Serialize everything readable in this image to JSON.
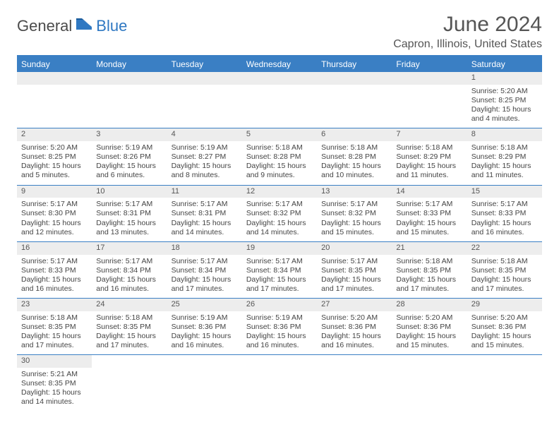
{
  "logo": {
    "general": "General",
    "blue": "Blue"
  },
  "title": "June 2024",
  "location": "Capron, Illinois, United States",
  "colors": {
    "header_bar": "#3a7fc4",
    "daynum_bg": "#ededed",
    "text": "#444444",
    "title_text": "#555555",
    "logo_gray": "#4b4b4b",
    "logo_blue": "#2f78c2",
    "background": "#ffffff"
  },
  "weekdays": [
    "Sunday",
    "Monday",
    "Tuesday",
    "Wednesday",
    "Thursday",
    "Friday",
    "Saturday"
  ],
  "weeks": [
    [
      null,
      null,
      null,
      null,
      null,
      null,
      {
        "n": "1",
        "sunrise": "5:20 AM",
        "sunset": "8:25 PM",
        "daylight": "15 hours and 4 minutes."
      }
    ],
    [
      {
        "n": "2",
        "sunrise": "5:20 AM",
        "sunset": "8:25 PM",
        "daylight": "15 hours and 5 minutes."
      },
      {
        "n": "3",
        "sunrise": "5:19 AM",
        "sunset": "8:26 PM",
        "daylight": "15 hours and 6 minutes."
      },
      {
        "n": "4",
        "sunrise": "5:19 AM",
        "sunset": "8:27 PM",
        "daylight": "15 hours and 8 minutes."
      },
      {
        "n": "5",
        "sunrise": "5:18 AM",
        "sunset": "8:28 PM",
        "daylight": "15 hours and 9 minutes."
      },
      {
        "n": "6",
        "sunrise": "5:18 AM",
        "sunset": "8:28 PM",
        "daylight": "15 hours and 10 minutes."
      },
      {
        "n": "7",
        "sunrise": "5:18 AM",
        "sunset": "8:29 PM",
        "daylight": "15 hours and 11 minutes."
      },
      {
        "n": "8",
        "sunrise": "5:18 AM",
        "sunset": "8:29 PM",
        "daylight": "15 hours and 11 minutes."
      }
    ],
    [
      {
        "n": "9",
        "sunrise": "5:17 AM",
        "sunset": "8:30 PM",
        "daylight": "15 hours and 12 minutes."
      },
      {
        "n": "10",
        "sunrise": "5:17 AM",
        "sunset": "8:31 PM",
        "daylight": "15 hours and 13 minutes."
      },
      {
        "n": "11",
        "sunrise": "5:17 AM",
        "sunset": "8:31 PM",
        "daylight": "15 hours and 14 minutes."
      },
      {
        "n": "12",
        "sunrise": "5:17 AM",
        "sunset": "8:32 PM",
        "daylight": "15 hours and 14 minutes."
      },
      {
        "n": "13",
        "sunrise": "5:17 AM",
        "sunset": "8:32 PM",
        "daylight": "15 hours and 15 minutes."
      },
      {
        "n": "14",
        "sunrise": "5:17 AM",
        "sunset": "8:33 PM",
        "daylight": "15 hours and 15 minutes."
      },
      {
        "n": "15",
        "sunrise": "5:17 AM",
        "sunset": "8:33 PM",
        "daylight": "15 hours and 16 minutes."
      }
    ],
    [
      {
        "n": "16",
        "sunrise": "5:17 AM",
        "sunset": "8:33 PM",
        "daylight": "15 hours and 16 minutes."
      },
      {
        "n": "17",
        "sunrise": "5:17 AM",
        "sunset": "8:34 PM",
        "daylight": "15 hours and 16 minutes."
      },
      {
        "n": "18",
        "sunrise": "5:17 AM",
        "sunset": "8:34 PM",
        "daylight": "15 hours and 17 minutes."
      },
      {
        "n": "19",
        "sunrise": "5:17 AM",
        "sunset": "8:34 PM",
        "daylight": "15 hours and 17 minutes."
      },
      {
        "n": "20",
        "sunrise": "5:17 AM",
        "sunset": "8:35 PM",
        "daylight": "15 hours and 17 minutes."
      },
      {
        "n": "21",
        "sunrise": "5:18 AM",
        "sunset": "8:35 PM",
        "daylight": "15 hours and 17 minutes."
      },
      {
        "n": "22",
        "sunrise": "5:18 AM",
        "sunset": "8:35 PM",
        "daylight": "15 hours and 17 minutes."
      }
    ],
    [
      {
        "n": "23",
        "sunrise": "5:18 AM",
        "sunset": "8:35 PM",
        "daylight": "15 hours and 17 minutes."
      },
      {
        "n": "24",
        "sunrise": "5:18 AM",
        "sunset": "8:35 PM",
        "daylight": "15 hours and 17 minutes."
      },
      {
        "n": "25",
        "sunrise": "5:19 AM",
        "sunset": "8:36 PM",
        "daylight": "15 hours and 16 minutes."
      },
      {
        "n": "26",
        "sunrise": "5:19 AM",
        "sunset": "8:36 PM",
        "daylight": "15 hours and 16 minutes."
      },
      {
        "n": "27",
        "sunrise": "5:20 AM",
        "sunset": "8:36 PM",
        "daylight": "15 hours and 16 minutes."
      },
      {
        "n": "28",
        "sunrise": "5:20 AM",
        "sunset": "8:36 PM",
        "daylight": "15 hours and 15 minutes."
      },
      {
        "n": "29",
        "sunrise": "5:20 AM",
        "sunset": "8:36 PM",
        "daylight": "15 hours and 15 minutes."
      }
    ],
    [
      {
        "n": "30",
        "sunrise": "5:21 AM",
        "sunset": "8:35 PM",
        "daylight": "15 hours and 14 minutes."
      },
      null,
      null,
      null,
      null,
      null,
      null
    ]
  ],
  "labels": {
    "sunrise": "Sunrise:",
    "sunset": "Sunset:",
    "daylight": "Daylight:"
  }
}
